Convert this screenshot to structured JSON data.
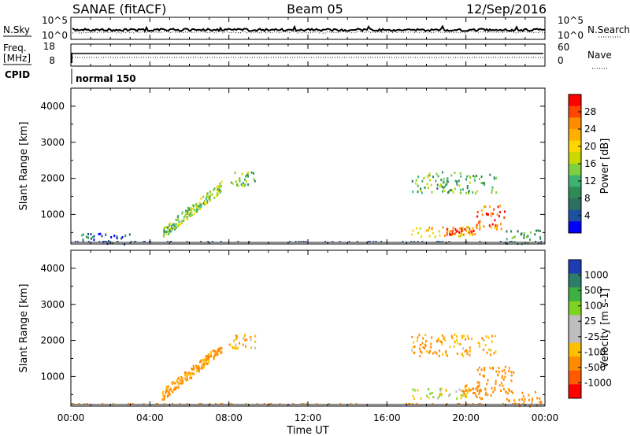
{
  "header": {
    "site": "SANAE (fitACF)",
    "beam": "Beam 05",
    "date": "12/Sep/2016"
  },
  "noise_panel": {
    "left_label": "N.Sky",
    "left_ticks": [
      "10^5",
      "10^0"
    ],
    "right_label": "N.Search",
    "right_ticks": [
      "10^5",
      "10^0"
    ]
  },
  "freq_panel": {
    "left_label_line1": "Freq.",
    "left_label_line2": "[MHz]",
    "left_ticks": [
      "18",
      "8"
    ],
    "right_label": "Nave",
    "right_ticks": [
      "60",
      "0"
    ]
  },
  "cpid": {
    "label": "CPID",
    "value": "normal 150"
  },
  "x_axis": {
    "tick_labels": [
      "00:00",
      "04:00",
      "08:00",
      "12:00",
      "16:00",
      "20:00",
      "00:00"
    ],
    "title": "Time UT"
  },
  "colorbars": {
    "power": {
      "title": "Power [dB]",
      "tick_labels": [
        "28",
        "24",
        "20",
        "16",
        "12",
        "8",
        "4"
      ],
      "colors": [
        "#ff0000",
        "#ff4500",
        "#ff8c00",
        "#ffb000",
        "#ffd700",
        "#c8d800",
        "#7fcf3f",
        "#3cb371",
        "#2e8b57",
        "#2f6f5f",
        "#1f4fa0",
        "#0000ff"
      ]
    },
    "velocity": {
      "title": "Velocity [m s-1]",
      "tick_labels": [
        "1000",
        "500",
        "100",
        "25",
        "-25",
        "-100",
        "-500",
        "-1000"
      ],
      "colors": [
        "#1e3cb4",
        "#2e7d6b",
        "#3cb043",
        "#7ed321",
        "#bebebe",
        "#bebebe",
        "#ffc000",
        "#ff8c00",
        "#ff5a00",
        "#ff0000"
      ]
    }
  },
  "chart_data": [
    {
      "type": "heatmap",
      "panel": "power",
      "ylabel": "Slant Range [km]",
      "xlabel": "Time UT",
      "xlim_hours": [
        0,
        24
      ],
      "ylim_km": [
        180,
        4500
      ],
      "y_tick_labels": [
        "1000",
        "2000",
        "3000",
        "4000"
      ],
      "y_ticks_km": [
        1000,
        2000,
        3000,
        4000
      ],
      "value_unit": "dB",
      "value_range": [
        0,
        30
      ],
      "colorbar_title": "Power [dB]",
      "clusters": [
        {
          "hours": [
            4.6,
            7.6
          ],
          "range_km": [
            500,
            1800
          ],
          "value": 14
        },
        {
          "hours": [
            8.0,
            9.3
          ],
          "range_km": [
            1800,
            2200
          ],
          "value": 12
        },
        {
          "hours": [
            0.5,
            3.0
          ],
          "range_km": [
            200,
            500
          ],
          "value": 6
        },
        {
          "hours": [
            17.2,
            20.5
          ],
          "range_km": [
            400,
            700
          ],
          "value": 20
        },
        {
          "hours": [
            19.0,
            20.5
          ],
          "range_km": [
            450,
            650
          ],
          "value": 26
        },
        {
          "hours": [
            17.2,
            21.5
          ],
          "range_km": [
            1600,
            2200
          ],
          "value": 12
        },
        {
          "hours": [
            20.5,
            22.0
          ],
          "range_km": [
            600,
            1300
          ],
          "value": 25
        },
        {
          "hours": [
            22.0,
            23.8
          ],
          "range_km": [
            200,
            600
          ],
          "value": 10
        }
      ]
    },
    {
      "type": "heatmap",
      "panel": "velocity",
      "ylabel": "Slant Range [km]",
      "xlabel": "Time UT",
      "xlim_hours": [
        0,
        24
      ],
      "ylim_km": [
        180,
        4500
      ],
      "y_tick_labels": [
        "1000",
        "2000",
        "3000",
        "4000"
      ],
      "y_ticks_km": [
        1000,
        2000,
        3000,
        4000
      ],
      "value_unit": "m s-1",
      "value_range": [
        -1000,
        1000
      ],
      "colorbar_title": "Velocity [m s-1]",
      "clusters": [
        {
          "hours": [
            4.6,
            7.6
          ],
          "range_km": [
            500,
            1800
          ],
          "value": -150
        },
        {
          "hours": [
            8.0,
            9.3
          ],
          "range_km": [
            1800,
            2200
          ],
          "value": -100
        },
        {
          "hours": [
            17.2,
            20.0
          ],
          "range_km": [
            400,
            700
          ],
          "value": 0
        },
        {
          "hours": [
            19.8,
            20.8
          ],
          "range_km": [
            400,
            800
          ],
          "value": -150
        },
        {
          "hours": [
            17.2,
            21.5
          ],
          "range_km": [
            1600,
            2200
          ],
          "value": -120
        },
        {
          "hours": [
            20.5,
            22.5
          ],
          "range_km": [
            500,
            1300
          ],
          "value": -300
        },
        {
          "hours": [
            22.0,
            23.8
          ],
          "range_km": [
            200,
            600
          ],
          "value": -200
        }
      ]
    }
  ]
}
